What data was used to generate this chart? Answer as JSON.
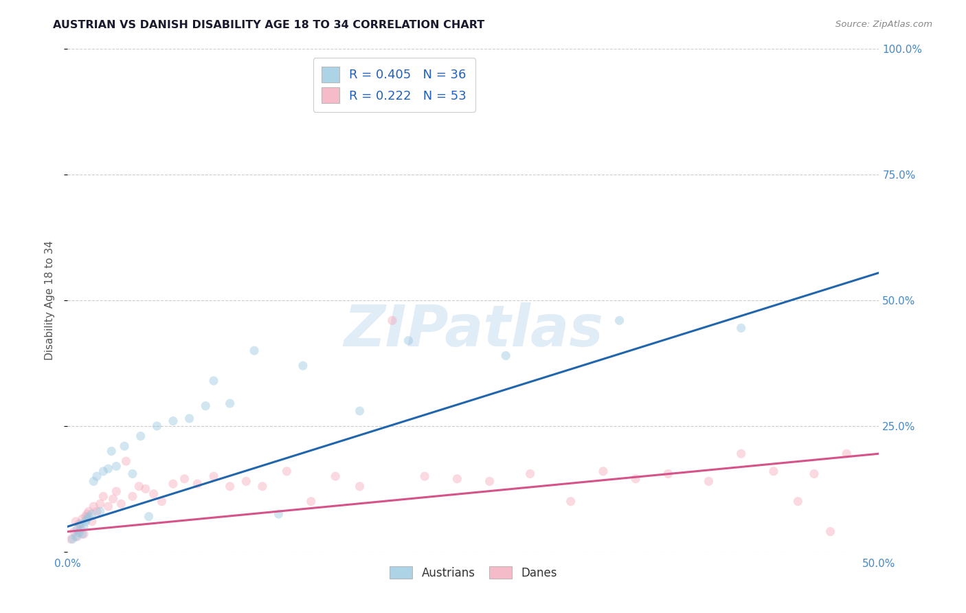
{
  "title": "AUSTRIAN VS DANISH DISABILITY AGE 18 TO 34 CORRELATION CHART",
  "source_text": "Source: ZipAtlas.com",
  "ylabel": "Disability Age 18 to 34",
  "xlim": [
    0.0,
    0.5
  ],
  "ylim": [
    0.0,
    1.0
  ],
  "xticks": [
    0.0,
    0.1,
    0.2,
    0.3,
    0.4,
    0.5
  ],
  "yticks": [
    0.0,
    0.25,
    0.5,
    0.75,
    1.0
  ],
  "xticklabels": [
    "0.0%",
    "",
    "",
    "",
    "",
    "50.0%"
  ],
  "yticklabels_right": [
    "",
    "25.0%",
    "50.0%",
    "75.0%",
    "100.0%"
  ],
  "grid_color": "#cccccc",
  "background_color": "#ffffff",
  "blue_color": "#92c5de",
  "pink_color": "#f4a5b8",
  "blue_line_color": "#2166ac",
  "pink_line_color": "#d6538a",
  "legend_color": "#2060c0",
  "austrians_label": "Austrians",
  "danes_label": "Danes",
  "R_austrians": 0.405,
  "N_austrians": 36,
  "R_danes": 0.222,
  "N_danes": 53,
  "blue_trend_x0": 0.0,
  "blue_trend_y0": 0.05,
  "blue_trend_x1": 0.5,
  "blue_trend_y1": 0.555,
  "pink_trend_x0": 0.0,
  "pink_trend_y0": 0.04,
  "pink_trend_x1": 0.5,
  "pink_trend_y1": 0.195,
  "austrians_x": [
    0.003,
    0.005,
    0.006,
    0.007,
    0.008,
    0.009,
    0.01,
    0.011,
    0.012,
    0.013,
    0.015,
    0.016,
    0.018,
    0.02,
    0.022,
    0.025,
    0.027,
    0.03,
    0.035,
    0.04,
    0.045,
    0.05,
    0.055,
    0.065,
    0.075,
    0.085,
    0.09,
    0.1,
    0.115,
    0.13,
    0.145,
    0.18,
    0.21,
    0.27,
    0.34,
    0.415
  ],
  "austrians_y": [
    0.025,
    0.03,
    0.045,
    0.038,
    0.055,
    0.035,
    0.05,
    0.06,
    0.065,
    0.07,
    0.075,
    0.14,
    0.15,
    0.08,
    0.16,
    0.165,
    0.2,
    0.17,
    0.21,
    0.155,
    0.23,
    0.07,
    0.25,
    0.26,
    0.265,
    0.29,
    0.34,
    0.295,
    0.4,
    0.075,
    0.37,
    0.28,
    0.42,
    0.39,
    0.46,
    0.445
  ],
  "danes_x": [
    0.002,
    0.004,
    0.005,
    0.006,
    0.007,
    0.008,
    0.009,
    0.01,
    0.011,
    0.012,
    0.013,
    0.015,
    0.016,
    0.018,
    0.02,
    0.022,
    0.025,
    0.028,
    0.03,
    0.033,
    0.036,
    0.04,
    0.044,
    0.048,
    0.053,
    0.058,
    0.065,
    0.072,
    0.08,
    0.09,
    0.1,
    0.11,
    0.12,
    0.135,
    0.15,
    0.165,
    0.18,
    0.2,
    0.22,
    0.24,
    0.26,
    0.285,
    0.31,
    0.33,
    0.35,
    0.37,
    0.395,
    0.415,
    0.435,
    0.45,
    0.46,
    0.47,
    0.48
  ],
  "danes_y": [
    0.025,
    0.04,
    0.06,
    0.03,
    0.055,
    0.045,
    0.065,
    0.035,
    0.07,
    0.075,
    0.08,
    0.06,
    0.09,
    0.08,
    0.095,
    0.11,
    0.09,
    0.105,
    0.12,
    0.095,
    0.18,
    0.11,
    0.13,
    0.125,
    0.115,
    0.1,
    0.135,
    0.145,
    0.135,
    0.15,
    0.13,
    0.14,
    0.13,
    0.16,
    0.1,
    0.15,
    0.13,
    0.46,
    0.15,
    0.145,
    0.14,
    0.155,
    0.1,
    0.16,
    0.145,
    0.155,
    0.14,
    0.195,
    0.16,
    0.1,
    0.155,
    0.04,
    0.195
  ],
  "watermark_text": "ZIPatlas",
  "marker_size": 90,
  "marker_alpha": 0.42,
  "line_width": 2.2
}
